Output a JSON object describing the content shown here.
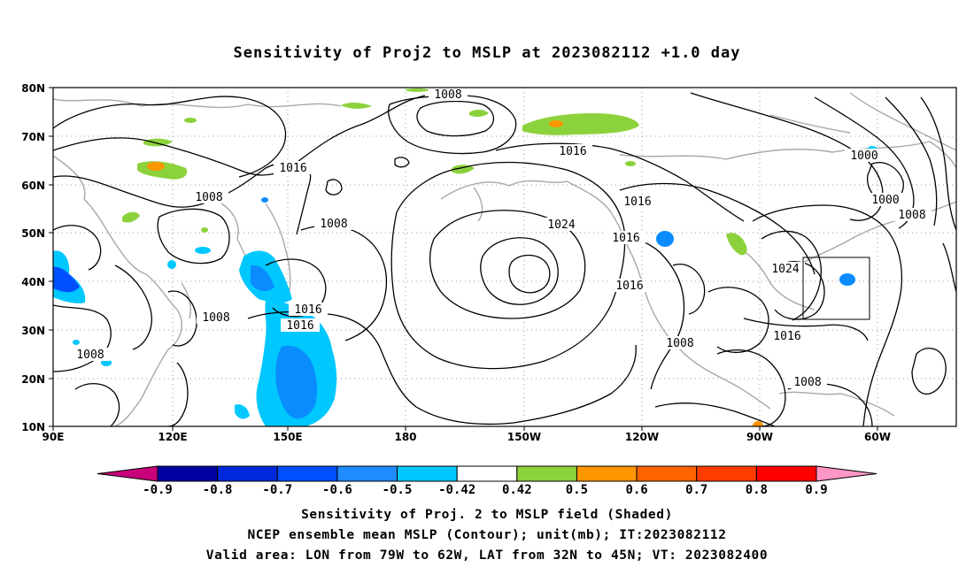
{
  "title": "Sensitivity of Proj2 to MSLP at 2023082112 +1.0 day",
  "map": {
    "lat_labels": [
      "80N",
      "70N",
      "60N",
      "50N",
      "40N",
      "30N",
      "20N",
      "10N"
    ],
    "lon_labels": [
      "90E",
      "120E",
      "150E",
      "180",
      "150W",
      "120W",
      "90W",
      "60W"
    ],
    "contour_labels": [
      "1008",
      "1016",
      "1008",
      "1008",
      "1016",
      "1016",
      "1008",
      "1008",
      "1016",
      "1024",
      "1016",
      "1016",
      "1016",
      "1024",
      "1008",
      "1016",
      "1008",
      "1000",
      "1000",
      "1008"
    ],
    "colors": {
      "coast": "#a8a8a8",
      "contour": "#000000",
      "grid": "#9a9a9a",
      "shade_neg_050": "#00c8ff",
      "shade_neg_060": "#0a8cff",
      "shade_neg_070": "#0050ff",
      "shade_pos_042": "#8cd23c",
      "shade_pos_050": "#ff9600"
    }
  },
  "colorbar": {
    "labels": [
      "-0.9",
      "-0.8",
      "-0.7",
      "-0.6",
      "-0.5",
      "-0.42",
      "0.42",
      "0.5",
      "0.6",
      "0.7",
      "0.8",
      "0.9"
    ],
    "colors": [
      "#c8007a",
      "#0000a0",
      "#0028dc",
      "#0050ff",
      "#1e8cff",
      "#00c8ff",
      "#ffffff",
      "#8cd23c",
      "#ff9600",
      "#ff6400",
      "#ff3c00",
      "#ff0000",
      "#ff96c8"
    ]
  },
  "caption": {
    "line1": "Sensitivity of Proj. 2 to MSLP field (Shaded)",
    "line2": "NCEP ensemble mean MSLP (Contour); unit(mb); IT:2023082112",
    "line3": "Valid area: LON from 79W to 62W, LAT from 32N to 45N; VT: 2023082400"
  }
}
